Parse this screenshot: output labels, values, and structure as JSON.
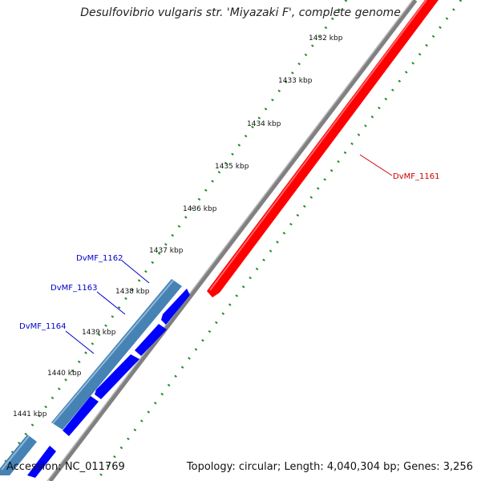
{
  "title": "Desulfovibrio vulgaris str. 'Miyazaki F', complete genome",
  "footer": {
    "accession": "Accession: NC_011769",
    "summary": "Topology: circular; Length: 4,040,304 bp; Genes: 3,256"
  },
  "colors": {
    "backbone": "#808080",
    "forward_gene": "#ff0000",
    "reverse_gene": "#0000ff",
    "cds_highlight": "#4682b4",
    "tick": "#228b22",
    "gene_label_forward": "#cc0000",
    "gene_label_reverse": "#0000cc"
  },
  "kbp_labels": [
    {
      "id": "1432",
      "text": "1432 kbp"
    },
    {
      "id": "1433",
      "text": "1433 kbp"
    },
    {
      "id": "1434",
      "text": "1434 kbp"
    },
    {
      "id": "1435",
      "text": "1435 kbp"
    },
    {
      "id": "1436",
      "text": "1436 kbp"
    },
    {
      "id": "1437",
      "text": "1437 kbp"
    },
    {
      "id": "1438",
      "text": "1438 kbp"
    },
    {
      "id": "1439",
      "text": "1439 kbp"
    },
    {
      "id": "1440",
      "text": "1440 kbp"
    },
    {
      "id": "1441",
      "text": "1441 kbp"
    }
  ],
  "gene_labels": [
    {
      "id": "DvMF_1161",
      "text": "DvMF_1161",
      "strand": "forward"
    },
    {
      "id": "DvMF_1162",
      "text": "DvMF_1162",
      "strand": "reverse"
    },
    {
      "id": "DvMF_1163",
      "text": "DvMF_1163",
      "strand": "reverse"
    },
    {
      "id": "DvMF_1164",
      "text": "DvMF_1164",
      "strand": "reverse"
    }
  ]
}
